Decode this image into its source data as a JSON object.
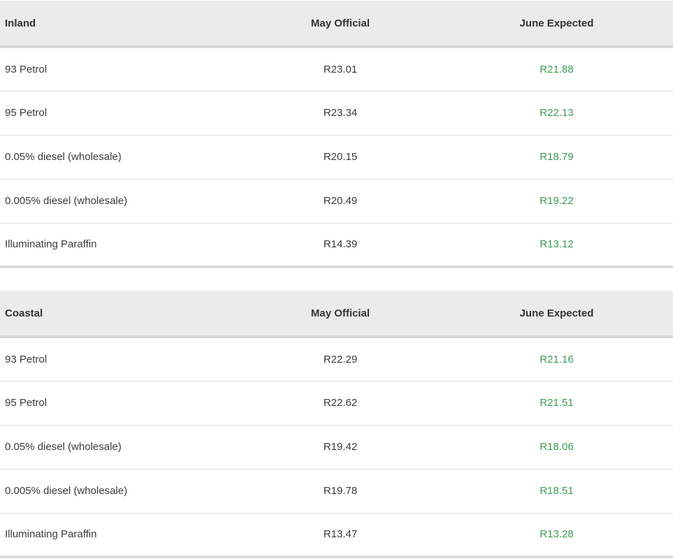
{
  "tables": [
    {
      "region": "Inland",
      "headers": {
        "may": "May Official",
        "june": "June Expected"
      },
      "rows": [
        {
          "fuel": "93 Petrol",
          "may": "R23.01",
          "june": "R21.88"
        },
        {
          "fuel": "95 Petrol",
          "may": "R23.34",
          "june": "R22.13"
        },
        {
          "fuel": "0.05% diesel (wholesale)",
          "may": "R20.15",
          "june": "R18.79"
        },
        {
          "fuel": "0.005% diesel (wholesale)",
          "may": "R20.49",
          "june": "R19.22"
        },
        {
          "fuel": "Illuminating Paraffin",
          "may": "R14.39",
          "june": "R13.12"
        }
      ]
    },
    {
      "region": "Coastal",
      "headers": {
        "may": "May Official",
        "june": "June Expected"
      },
      "rows": [
        {
          "fuel": "93 Petrol",
          "may": "R22.29",
          "june": "R21.16"
        },
        {
          "fuel": "95 Petrol",
          "may": "R22.62",
          "june": "R21.51"
        },
        {
          "fuel": "0.05% diesel (wholesale)",
          "may": "R19.42",
          "june": "R18.06"
        },
        {
          "fuel": "0.005% diesel (wholesale)",
          "may": "R19.78",
          "june": "R18.51"
        },
        {
          "fuel": "Illuminating Paraffin",
          "may": "R13.47",
          "june": "R13.28"
        }
      ]
    }
  ],
  "colors": {
    "header_bg": "#ebebeb",
    "june_text": "#3d9a52",
    "text": "#333333",
    "row_border": "#dcdcdc"
  }
}
